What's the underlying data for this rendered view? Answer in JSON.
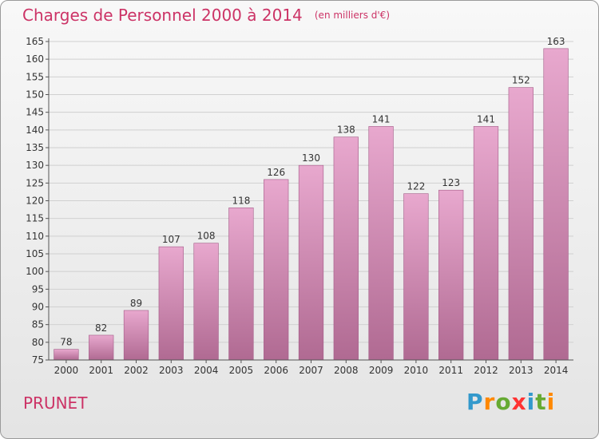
{
  "title": "Charges de Personnel 2000 à 2014",
  "subtitle": "(en milliers d'€)",
  "commune": "PRUNET",
  "logo": {
    "text": "Proxiti",
    "letter_colors": [
      "#3399cc",
      "#ff8800",
      "#66aa33",
      "#ff3333",
      "#3399cc",
      "#66aa33",
      "#ff8800"
    ]
  },
  "colors": {
    "accent": "#cc3366",
    "bar_top": "#e8a8ce",
    "bar_bottom": "#b06a92",
    "bar_edge": "#a35a87",
    "grid": "#d0d0d0",
    "axis": "#555555",
    "text": "#333333"
  },
  "chart_data": {
    "type": "bar",
    "categories": [
      "2000",
      "2001",
      "2002",
      "2003",
      "2004",
      "2005",
      "2006",
      "2007",
      "2008",
      "2009",
      "2010",
      "2011",
      "2012",
      "2013",
      "2014"
    ],
    "values": [
      78,
      82,
      89,
      107,
      108,
      118,
      126,
      130,
      138,
      141,
      122,
      123,
      141,
      152,
      163
    ],
    "data_labels": [
      "78",
      "82",
      "89",
      "107",
      "108",
      "118",
      "126",
      "130",
      "138",
      "141",
      "122",
      "123",
      "141",
      "152",
      "163"
    ],
    "ylim": [
      75,
      165
    ],
    "yticks": [
      75,
      80,
      85,
      90,
      95,
      100,
      105,
      110,
      115,
      120,
      125,
      130,
      135,
      140,
      145,
      150,
      155,
      160,
      165
    ],
    "ytick_labels": [
      "75",
      "80",
      "85",
      "90",
      "95",
      "100",
      "105",
      "110",
      "115",
      "120",
      "125",
      "130",
      "135",
      "140",
      "145",
      "150",
      "155",
      "160",
      "165"
    ],
    "grid": true,
    "legend": "none"
  }
}
